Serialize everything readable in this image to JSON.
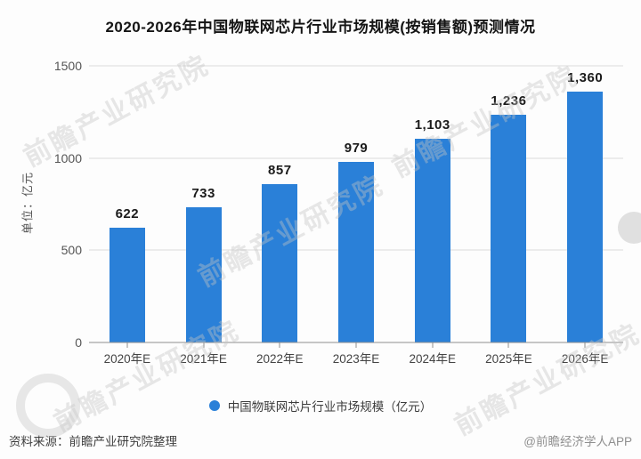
{
  "title": "2020-2026年中国物联网芯片行业市场规模(按销售额)预测情况",
  "chart_data": {
    "type": "bar",
    "title": "2020-2026年中国物联网芯片行业市场规模(按销售额)预测情况",
    "unit_label": "单位：亿元",
    "categories": [
      "2020年E",
      "2021年E",
      "2022年E",
      "2023年E",
      "2024年E",
      "2025年E",
      "2026年E"
    ],
    "values": [
      622,
      733,
      857,
      979,
      1103,
      1236,
      1360
    ],
    "value_labels": [
      "622",
      "733",
      "857",
      "979",
      "1,103",
      "1,236",
      "1,360"
    ],
    "ylim": [
      0,
      1500
    ],
    "y_ticks": [
      0,
      500,
      1000,
      1500
    ],
    "y_tick_labels": [
      "0",
      "500",
      "1000",
      "1500"
    ],
    "grid": true,
    "bar_color": "#2A80D8",
    "legend": {
      "position": "bottom",
      "marker": "circle",
      "label": "中国物联网芯片行业市场规模（亿元）"
    }
  },
  "watermark": {
    "text": "前瞻产业研究院"
  },
  "footer": {
    "source": "资料来源：前瞻产业研究院整理",
    "credit": "@前瞻经济学人APP"
  }
}
